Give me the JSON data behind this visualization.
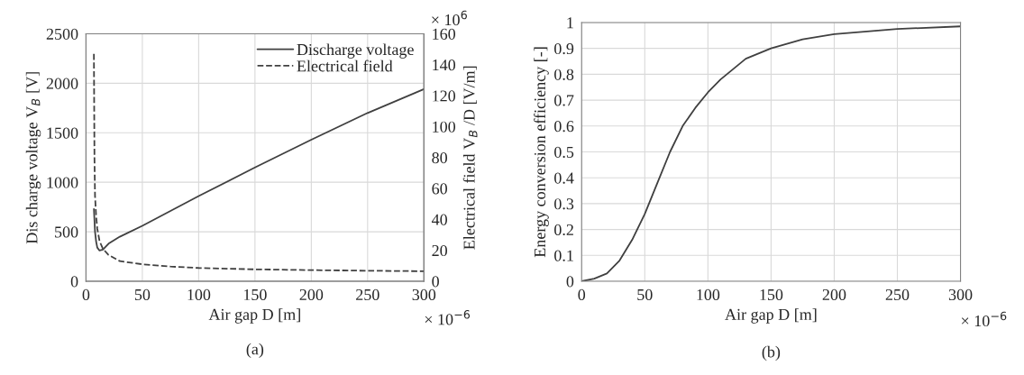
{
  "chart_data": [
    {
      "type": "line",
      "xlabel": "Air gap D [m]",
      "ylabel": "Dis charge voltage V$_{B}$ [V]",
      "y2label": "Electrical field V$_{B}$ /D [V/m]",
      "xlim": [
        0,
        300
      ],
      "xticks": [
        0,
        50,
        100,
        150,
        200,
        250,
        300
      ],
      "ylim": [
        0,
        2500
      ],
      "yticks": [
        0,
        500,
        1000,
        1500,
        2000,
        2500
      ],
      "y2lim": [
        0,
        160
      ],
      "y2ticks": [
        0,
        20,
        40,
        60,
        80,
        100,
        120,
        140,
        160
      ],
      "grid": true,
      "legend": "top right",
      "annotations": [
        "× 10$^{6}$",
        "× 10$^{−6}$",
        "(a)"
      ],
      "series": [
        {
          "name": "Discharge voltage",
          "color": "#404040",
          "line_style": "solid",
          "x": [
            7,
            8,
            9,
            10,
            12,
            15,
            20,
            30,
            50,
            75,
            100,
            150,
            200,
            250,
            300
          ],
          "values": [
            730,
            500,
            400,
            340,
            310,
            320,
            380,
            450,
            560,
            710,
            860,
            1150,
            1430,
            1700,
            1940
          ]
        },
        {
          "name": "Electrical field",
          "color": "#404040",
          "line_style": "dashed",
          "axis": "y2",
          "x": [
            7,
            7.5,
            8,
            9,
            10,
            12,
            15,
            20,
            30,
            50,
            75,
            100,
            150,
            200,
            250,
            300
          ],
          "values": [
            147,
            80,
            55,
            42,
            34,
            26,
            21,
            17,
            13,
            11,
            9.5,
            8.6,
            7.7,
            7.2,
            6.8,
            6.5
          ]
        }
      ]
    },
    {
      "type": "line",
      "xlabel": "Air gap D [m]",
      "ylabel": "Energy conversion efficiency [-]",
      "xlim": [
        0,
        300
      ],
      "xticks": [
        0,
        50,
        100,
        150,
        200,
        250,
        300
      ],
      "ylim": [
        0,
        1
      ],
      "yticks": [
        0,
        0.1,
        0.2,
        0.3,
        0.4,
        0.5,
        0.6,
        0.7,
        0.8,
        0.9,
        1
      ],
      "grid": true,
      "annotations": [
        "× 10$^{−6}$",
        "(b)"
      ],
      "series": [
        {
          "color": "#404040",
          "line_style": "solid",
          "x": [
            0,
            10,
            20,
            30,
            40,
            50,
            60,
            70,
            80,
            90,
            100,
            110,
            120,
            130,
            150,
            175,
            200,
            250,
            300
          ],
          "values": [
            0,
            0.01,
            0.03,
            0.08,
            0.16,
            0.26,
            0.38,
            0.5,
            0.6,
            0.67,
            0.73,
            0.78,
            0.82,
            0.86,
            0.9,
            0.935,
            0.955,
            0.975,
            0.985
          ]
        }
      ]
    }
  ]
}
